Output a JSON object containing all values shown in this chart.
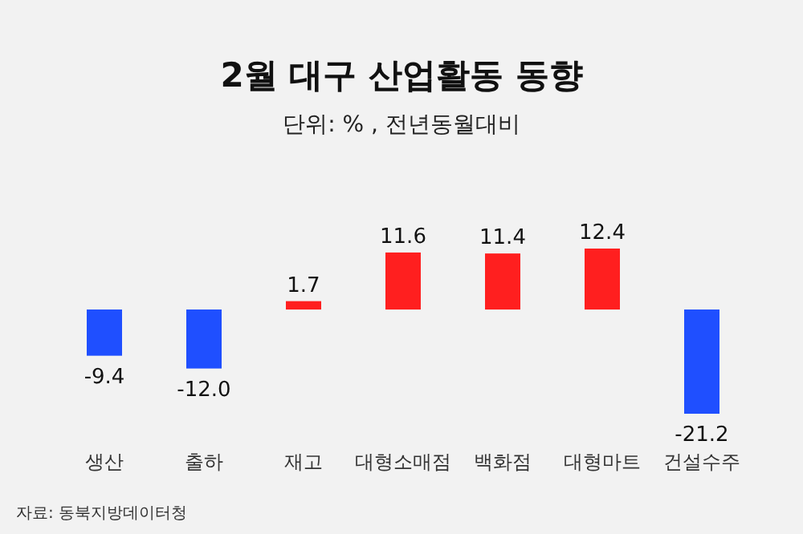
{
  "chart_data": {
    "type": "bar",
    "title": "2월 대구 산업활동 동향",
    "subtitle": "단위: % , 전년동월대비",
    "categories": [
      "생산",
      "출하",
      "재고",
      "대형소매점",
      "백화점",
      "대형마트",
      "건설수주"
    ],
    "values": [
      -9.4,
      -12.0,
      1.7,
      11.6,
      11.4,
      12.4,
      -21.2
    ],
    "value_labels": [
      "-9.4",
      "-12.0",
      "1.7",
      "11.6",
      "11.4",
      "12.4",
      "-21.2"
    ],
    "colors": [
      "#1f4fff",
      "#1f4fff",
      "#ff1f1f",
      "#ff1f1f",
      "#ff1f1f",
      "#ff1f1f",
      "#1f4fff"
    ],
    "annotations": [
      "자료: 동북지방데이터청"
    ]
  }
}
